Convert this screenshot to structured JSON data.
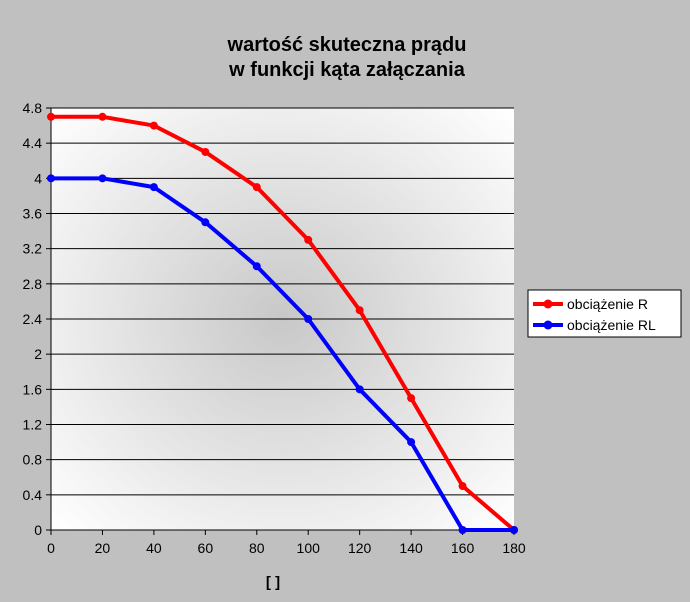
{
  "chart_data": {
    "type": "line",
    "title": "wartość skuteczna prądu",
    "subtitle": "w funkcji kąta załączania",
    "xlabel": "[ ]",
    "ylabel": "",
    "x": [
      0,
      20,
      40,
      60,
      80,
      100,
      120,
      140,
      160,
      180
    ],
    "xlim": [
      0,
      180
    ],
    "ylim": [
      0,
      4.8
    ],
    "x_ticks": [
      "0",
      "20",
      "40",
      "60",
      "80",
      "100",
      "120",
      "140",
      "160",
      "180"
    ],
    "y_ticks": [
      "0",
      "0.4",
      "0.8",
      "1.2",
      "1.6",
      "2",
      "2.4",
      "2.8",
      "3.2",
      "3.6",
      "4",
      "4.4",
      "4.8"
    ],
    "grid": "horizontal",
    "legend_position": "right",
    "series": [
      {
        "name": "obciążenie R",
        "color": "#ff0000",
        "values": [
          4.7,
          4.7,
          4.6,
          4.3,
          3.9,
          3.3,
          2.5,
          1.5,
          0.5,
          0
        ]
      },
      {
        "name": "obciążenie RL",
        "color": "#0000ff",
        "values": [
          4.0,
          4.0,
          3.9,
          3.5,
          3.0,
          2.4,
          1.6,
          1.0,
          0,
          0
        ]
      }
    ],
    "colors": {
      "background": "#c0c0c0",
      "axis": "#000000",
      "grid": "#000000"
    }
  }
}
